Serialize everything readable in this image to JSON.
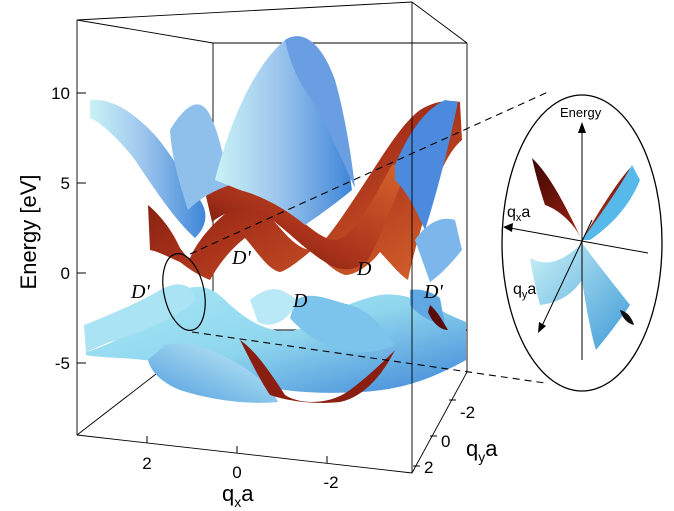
{
  "axes": {
    "energy": {
      "label": "Energy [eV]",
      "ticks": [
        "10",
        "5",
        "0",
        "-5"
      ]
    },
    "qx": {
      "label_main": "q",
      "label_sub": "x",
      "label_tail": "a",
      "ticks": [
        "2",
        "0",
        "-2"
      ]
    },
    "qy": {
      "label_main": "q",
      "label_sub": "y",
      "label_tail": "a",
      "ticks": [
        "-2",
        "0",
        "2"
      ]
    }
  },
  "dirac_points": {
    "d_prime_left": "D'",
    "d_prime_top": "D'",
    "d_center": "D",
    "d_right": "D",
    "d_prime_right": "D'"
  },
  "inset": {
    "energy_label": "Energy",
    "qx_main": "q",
    "qx_sub": "x",
    "qx_tail": "a",
    "qy_main": "q",
    "qy_sub": "y",
    "qy_tail": "a"
  },
  "colors": {
    "upper_band_dark": "#5a0c08",
    "upper_band_mid": "#a8321a",
    "upper_band_light": "#d9662e",
    "lower_band_light": "#c9f2f6",
    "lower_band_mid": "#8fd6ee",
    "lower_band_dark": "#3f86d8",
    "box_stroke": "#000000"
  }
}
